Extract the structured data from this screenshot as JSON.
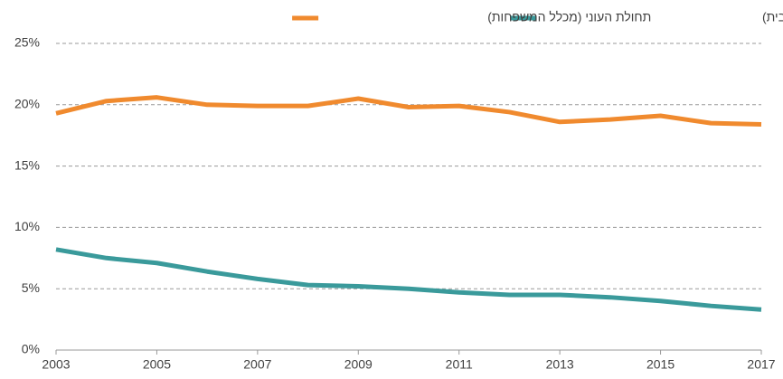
{
  "chart_data": {
    "type": "line",
    "x": [
      2003,
      2004,
      2005,
      2006,
      2007,
      2008,
      2009,
      2010,
      2011,
      2012,
      2013,
      2014,
      2015,
      2016,
      2017
    ],
    "series": [
      {
        "name": "מקבלי הבטחת הכנסה (מכלל משקי הבית)",
        "color": "#3a9a9b",
        "values": [
          8.2,
          7.5,
          7.1,
          6.4,
          5.8,
          5.3,
          5.2,
          5.0,
          4.7,
          4.5,
          4.5,
          4.3,
          4.0,
          3.6,
          3.3
        ]
      },
      {
        "name": "תחולת העוני (מכלל המשפחות)",
        "color": "#f08a2e",
        "values": [
          19.3,
          20.3,
          20.6,
          20.0,
          19.9,
          19.9,
          20.5,
          19.8,
          19.9,
          19.4,
          18.6,
          18.8,
          19.1,
          18.5,
          18.4
        ]
      }
    ],
    "xlim": [
      2003,
      2017
    ],
    "xticks": [
      2003,
      2005,
      2007,
      2009,
      2011,
      2013,
      2015,
      2017
    ],
    "ylim": [
      0,
      25
    ],
    "yticks": [
      {
        "value": 0,
        "label": "0%"
      },
      {
        "value": 5,
        "label": "5%"
      },
      {
        "value": 10,
        "label": "10%"
      },
      {
        "value": 15,
        "label": "15%"
      },
      {
        "value": 20,
        "label": "20%"
      },
      {
        "value": 25,
        "label": "25%"
      }
    ],
    "grid": true,
    "legend": "top"
  }
}
